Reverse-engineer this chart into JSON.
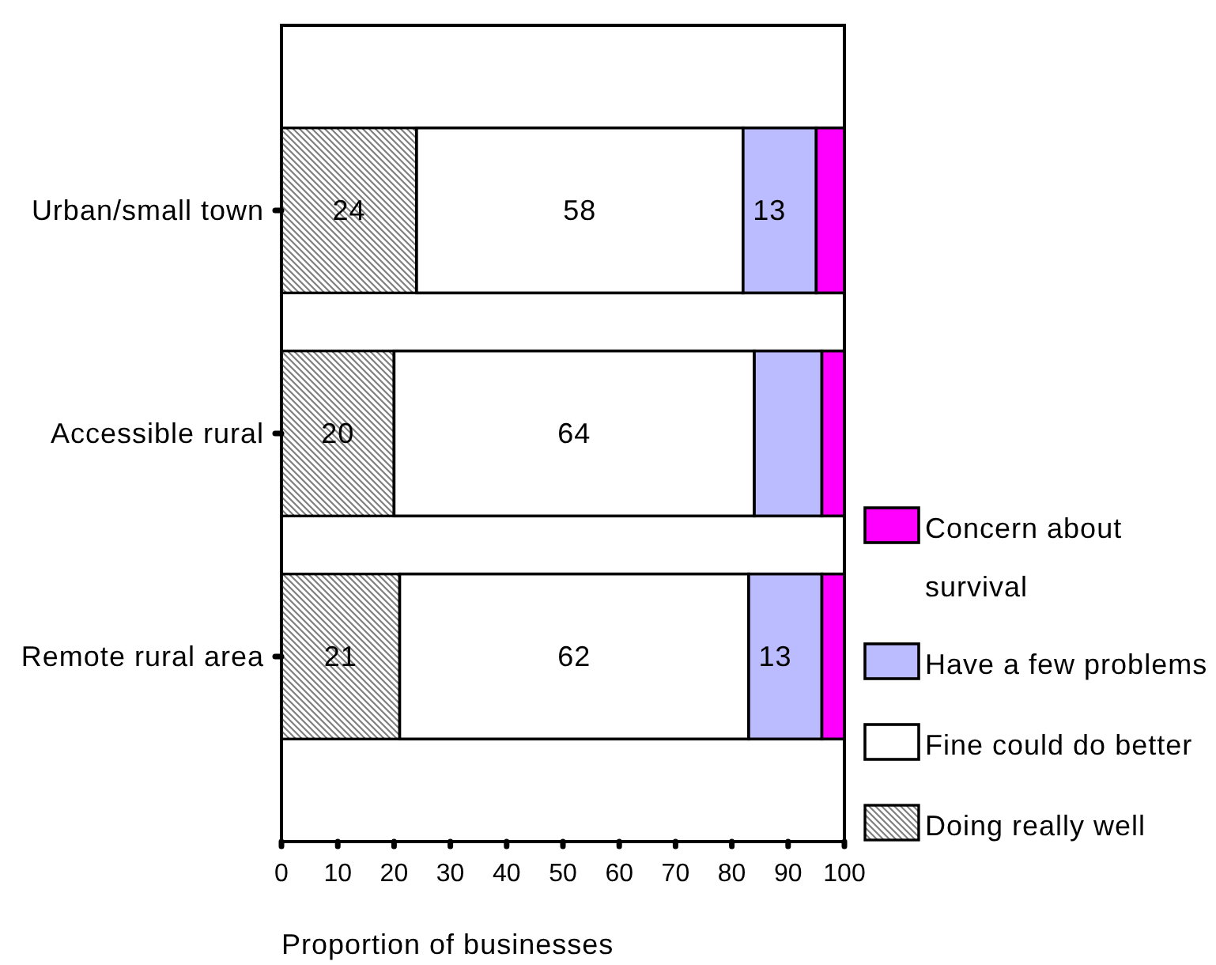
{
  "chart_data": {
    "type": "bar",
    "orientation": "horizontal",
    "stacked": true,
    "categories": [
      "Urban/small town",
      "Accessible rural",
      "Remote rural area"
    ],
    "series": [
      {
        "name": "Doing really well",
        "color": "#808080",
        "values": [
          24,
          20,
          21
        ],
        "value_labels": [
          "24",
          "20",
          "21"
        ]
      },
      {
        "name": "Fine could do better",
        "color": "#ffffff",
        "values": [
          58,
          64,
          62
        ],
        "value_labels": [
          "58",
          "64",
          "62"
        ]
      },
      {
        "name": "Have a few problems",
        "color": "#bbbbff",
        "values": [
          13,
          12,
          13
        ],
        "value_labels": [
          "13",
          null,
          "13"
        ]
      },
      {
        "name": "Concern about survival",
        "color": "#ff00ff",
        "values": [
          5,
          4,
          4
        ]
      }
    ],
    "xlim": [
      0,
      100
    ],
    "xticks": [
      0,
      10,
      20,
      30,
      40,
      50,
      60,
      70,
      80,
      90,
      100
    ],
    "xlabel": "Proportion of businesses",
    "legend": "right"
  }
}
